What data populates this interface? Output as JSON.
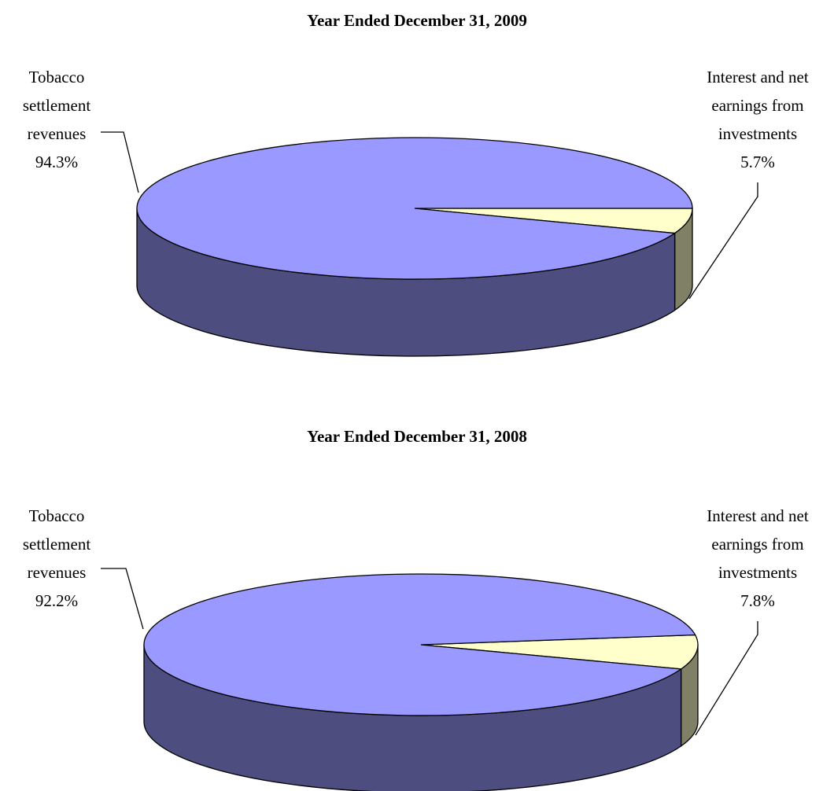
{
  "chart_data": [
    {
      "type": "pie3d",
      "title": "Year Ended December 31, 2009",
      "categories": [
        "Tobacco settlement revenues",
        "Interest and net earnings from investments"
      ],
      "values": [
        94.3,
        5.7
      ],
      "value_labels": [
        "94.3%",
        "5.7%"
      ],
      "colors": [
        "#9999ff",
        "#ffffcc"
      ]
    },
    {
      "type": "pie3d",
      "title": "Year Ended December 31, 2008",
      "categories": [
        "Tobacco settlement revenues",
        "Interest and net earnings from investments"
      ],
      "values": [
        92.2,
        7.8
      ],
      "value_labels": [
        "92.2%",
        "7.8%"
      ],
      "colors": [
        "#9999ff",
        "#ffffcc"
      ]
    }
  ]
}
